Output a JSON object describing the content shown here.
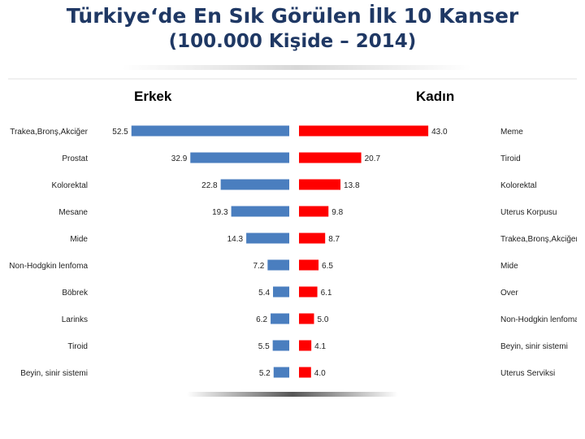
{
  "title": {
    "line1": "Türkiye‘de En Sık Görülen İlk 10 Kanser",
    "line2": "(100.000 Kişide – 2014)"
  },
  "colors": {
    "title": "#1f3864",
    "male": "#4a7ebf",
    "female": "#ff0000"
  },
  "chart_data": {
    "type": "bar",
    "orientation": "horizontal",
    "xlim": [
      0,
      55
    ],
    "grid": false,
    "series": [
      {
        "name": "Erkek",
        "side": "left",
        "categories": [
          "Trakea,Bronş,Akciğer",
          "Prostat",
          "Kolorektal",
          "Mesane",
          "Mide",
          "Non-Hodgkin lenfoma",
          "Böbrek",
          "Larinks",
          "Tiroid",
          "Beyin, sinir sistemi"
        ],
        "values": [
          52.5,
          32.9,
          22.8,
          19.3,
          14.3,
          7.2,
          5.4,
          6.2,
          5.5,
          5.2
        ],
        "labels": [
          "52.5",
          "32.9",
          "22.8",
          "19.3",
          "14.3",
          "7.2",
          "5.4",
          "6.2",
          "5.5",
          "5.2"
        ]
      },
      {
        "name": "Kadın",
        "side": "right",
        "categories": [
          "Meme",
          "Tiroid",
          "Kolorektal",
          "Uterus Korpusu",
          "Trakea,Bronş,Akciğer",
          "Mide",
          "Over",
          "Non-Hodgkin lenfoma",
          "Beyin, sinir sistemi",
          "Uterus Serviksi"
        ],
        "values": [
          43.0,
          20.7,
          13.8,
          9.8,
          8.7,
          6.5,
          6.1,
          5.0,
          4.1,
          4.0
        ],
        "labels": [
          "43.0",
          "20.7",
          "13.8",
          "9.8",
          "8.7",
          "6.5",
          "6.1",
          "5.0",
          "4.1",
          "4.0"
        ]
      }
    ]
  }
}
